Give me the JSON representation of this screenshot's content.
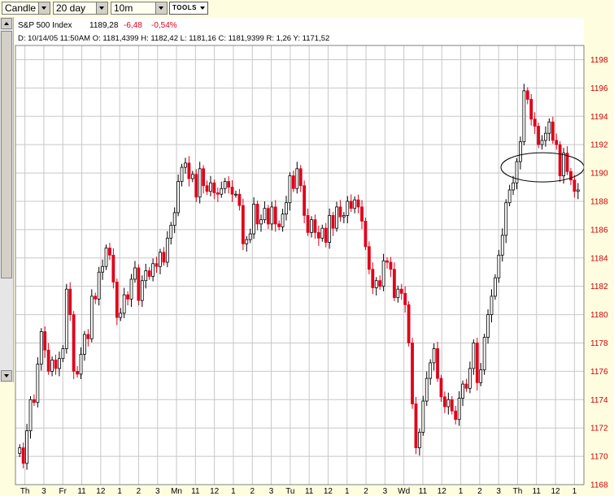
{
  "toolbar": {
    "chart_type": "Candle",
    "period": "20 day",
    "interval": "10m",
    "tools_label": "TOOLS"
  },
  "header": {
    "symbol_name": "S&P 500 Index",
    "last": "1189,28",
    "change": "-6,48",
    "change_pct": "-0,54%",
    "bar_info": "D: 10/14/05 11:50AM  O: 1181,4399  H: 1182,42  L: 1181,16  C: 1181,9399  R: 1,26  Y: 1171,52"
  },
  "colors": {
    "background": "#fffde0",
    "up_candle": "#000000",
    "down_candle": "#e0001a",
    "grid": "#c8c8c8",
    "axis_label_price": "#cc0000"
  },
  "chart_data": {
    "type": "candlestick",
    "title": "S&P 500 Index",
    "ylim": [
      1168,
      1199
    ],
    "y_ticks": [
      "1168",
      "1170",
      "1172",
      "1174",
      "1176",
      "1178",
      "1180",
      "1182",
      "1184",
      "1186",
      "1188",
      "1190",
      "1192",
      "1194",
      "1196",
      "1198"
    ],
    "x_tick_labels": [
      "Th",
      "3",
      "Fr",
      "11",
      "12",
      "1",
      "2",
      "3",
      "Mn",
      "11",
      "12",
      "1",
      "2",
      "3",
      "Tu",
      "11",
      "12",
      "1",
      "2",
      "3",
      "Wd",
      "11",
      "12",
      "1",
      "2",
      "3",
      "Th",
      "11",
      "12",
      "1"
    ],
    "annotation": "ellipse around 1189–1191 region on final day",
    "close_series": [
      1170.6,
      1169.5,
      1171.8,
      1174.0,
      1173.8,
      1176.5,
      1178.8,
      1177.5,
      1176.0,
      1176.8,
      1176.2,
      1176.9,
      1177.6,
      1181.8,
      1180.0,
      1176.0,
      1175.8,
      1177.2,
      1178.6,
      1178.3,
      1181.3,
      1181.1,
      1183.0,
      1183.4,
      1184.7,
      1184.2,
      1182.3,
      1179.8,
      1180.1,
      1181.4,
      1181.1,
      1182.5,
      1183.3,
      1181.0,
      1182.4,
      1183.1,
      1182.7,
      1183.6,
      1183.4,
      1184.4,
      1183.7,
      1185.4,
      1186.3,
      1187.2,
      1189.4,
      1190.4,
      1190.7,
      1189.6,
      1189.9,
      1188.3,
      1190.3,
      1189.1,
      1188.7,
      1189.3,
      1188.6,
      1188.5,
      1188.9,
      1189.4,
      1189.0,
      1188.5,
      1188.5,
      1187.7,
      1185.0,
      1185.3,
      1185.7,
      1187.8,
      1186.4,
      1186.7,
      1187.5,
      1186.4,
      1187.6,
      1186.4,
      1186.2,
      1187.1,
      1187.9,
      1189.8,
      1188.9,
      1190.3,
      1189.1,
      1187.0,
      1185.8,
      1186.7,
      1185.8,
      1185.4,
      1186.1,
      1185.1,
      1187.0,
      1186.1,
      1187.6,
      1186.9,
      1187.0,
      1188.0,
      1187.5,
      1188.1,
      1187.6,
      1186.6,
      1184.8,
      1183.2,
      1181.9,
      1182.4,
      1182.0,
      1183.8,
      1183.7,
      1183.2,
      1181.2,
      1181.8,
      1181.5,
      1180.7,
      1178.0,
      1173.7,
      1170.6,
      1171.7,
      1173.9,
      1175.5,
      1176.6,
      1177.6,
      1175.5,
      1174.2,
      1173.5,
      1174.0,
      1173.2,
      1172.6,
      1174.1,
      1175.1,
      1174.8,
      1176.2,
      1178.0,
      1175.2,
      1176.1,
      1178.4,
      1180.0,
      1181.3,
      1182.6,
      1184.2,
      1185.6,
      1187.9,
      1188.8,
      1189.3,
      1190.8,
      1192.2,
      1195.8,
      1195.2,
      1193.8,
      1193.3,
      1192.0,
      1192.3,
      1192.8,
      1193.6,
      1192.3,
      1192.0,
      1189.8,
      1191.4,
      1190.1,
      1189.5,
      1188.7,
      1188.8
    ],
    "last_bar": {
      "open": 1181.4399,
      "high": 1182.42,
      "low": 1181.16,
      "close": 1181.9399
    }
  }
}
